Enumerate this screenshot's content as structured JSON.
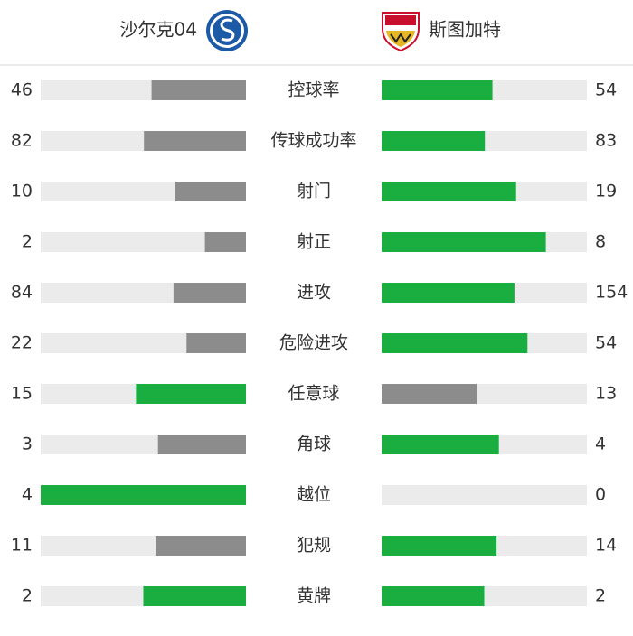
{
  "header": {
    "home": "沙尔克04",
    "away": "斯图加特"
  },
  "colors": {
    "lead": "#1aad3f",
    "trail": "#8c8c8c",
    "track": "#ebebeb"
  },
  "stats": [
    {
      "label": "控球率",
      "home": 46,
      "away": 54
    },
    {
      "label": "传球成功率",
      "home": 82,
      "away": 83
    },
    {
      "label": "射门",
      "home": 10,
      "away": 19
    },
    {
      "label": "射正",
      "home": 2,
      "away": 8
    },
    {
      "label": "进攻",
      "home": 84,
      "away": 154
    },
    {
      "label": "危险进攻",
      "home": 22,
      "away": 54
    },
    {
      "label": "任意球",
      "home": 15,
      "away": 13
    },
    {
      "label": "角球",
      "home": 3,
      "away": 4
    },
    {
      "label": "越位",
      "home": 4,
      "away": 0
    },
    {
      "label": "犯规",
      "home": 11,
      "away": 14
    },
    {
      "label": "黄牌",
      "home": 2,
      "away": 2
    }
  ]
}
